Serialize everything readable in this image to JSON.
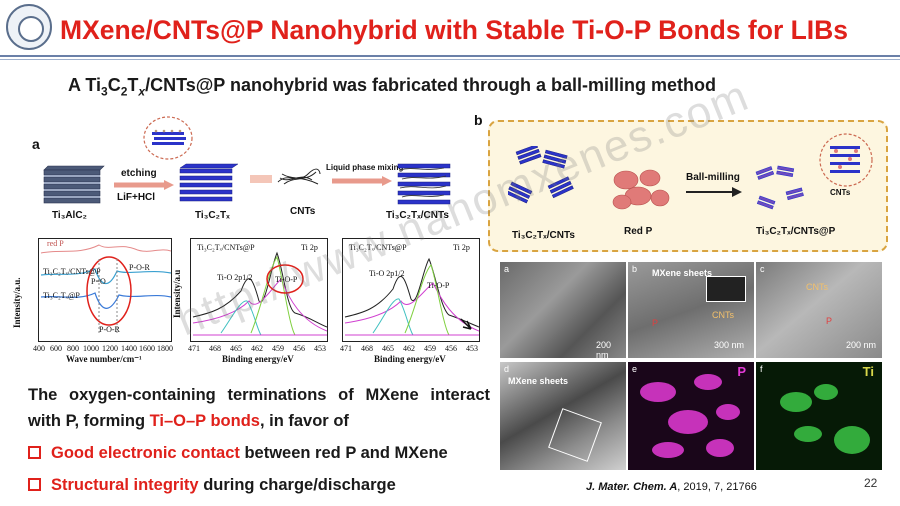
{
  "header": {
    "title": "MXene/CNTs@P Nanohybrid with Stable Ti-O-P Bonds for LIBs",
    "subtitle_pre": "A Ti",
    "subtitle_3": "3",
    "subtitle_C": "C",
    "subtitle_2": "2",
    "subtitle_T": "T",
    "subtitle_x": "x",
    "subtitle_post": "/CNTs@P nanohybrid was fabricated through a ball-milling method"
  },
  "panel_a": {
    "letter": "a",
    "labels": {
      "ti3alc2": "Ti₃AlC₂",
      "etching": "etching",
      "lif": "LiF+HCl",
      "ti3c2tx": "Ti₃C₂Tₓ",
      "cnts": "CNTs",
      "liquid_mix": "Liquid phase mixing",
      "ti3c2tx_cnts": "Ti₃C₂Tₓ/CNTs"
    },
    "ftir": {
      "ylabel": "Intensity/a.u.",
      "xlabel": "Wave number/cm⁻¹",
      "ticks": [
        "400",
        "600",
        "800",
        "1000",
        "1200",
        "1400",
        "1600",
        "1800"
      ],
      "legend": [
        "red P",
        "Ti₃C₂Tₓ/CNTs@P",
        "Ti₃C₂Tₓ@P"
      ],
      "annotations": [
        "P-O-R",
        "P=O",
        "P-O-R"
      ]
    },
    "xps1": {
      "title": "Ti₃C₂Tₓ/CNTs@P",
      "region": "Ti 2p",
      "ylabel": "Intensity/a.u",
      "xlabel": "Binding energy/eV",
      "peaks": [
        "Ti-O 2p1/2",
        "Ti-O-P"
      ],
      "ticks": [
        "471",
        "468",
        "465",
        "462",
        "459",
        "456",
        "453"
      ]
    },
    "xps2": {
      "title": "Ti₃C₂Tₓ/CNTs@P",
      "region": "Ti 2p",
      "xlabel": "Binding energy/eV",
      "peaks": [
        "Ti-O 2p1/2",
        "Ti-O-P"
      ],
      "ticks": [
        "471",
        "468",
        "465",
        "462",
        "459",
        "456",
        "453"
      ]
    }
  },
  "panel_b": {
    "letter": "b",
    "labels": {
      "ti3c2tx_cnts": "Ti₃C₂Tₓ/CNTs",
      "red_p": "Red P",
      "ball_milling": "Ball-milling",
      "product": "Ti₃C₂Tₓ/CNTs@P",
      "cnts": "CNTs"
    }
  },
  "micrographs": {
    "a": {
      "letter": "a",
      "scale": "200 nm"
    },
    "b": {
      "letter": "b",
      "caption": "MXene sheets",
      "cnts": "CNTs",
      "p": "P",
      "scale": "300 nm"
    },
    "c": {
      "letter": "c",
      "cnts": "CNTs",
      "p": "P",
      "scale": "200 nm"
    },
    "d": {
      "letter": "d",
      "caption": "MXene sheets"
    },
    "e": {
      "letter": "e",
      "element": "P"
    },
    "f": {
      "letter": "f",
      "element": "Ti"
    }
  },
  "body": {
    "text_1": "The oxygen-containing terminations of MXene interact with P, forming ",
    "text_hl": "Ti–O–P bonds",
    "text_2": ", in favor of",
    "bullet1_hl": "Good electronic contact",
    "bullet1_rest": " between red P and MXene",
    "bullet2_hl": "Structural integrity",
    "bullet2_rest": " during charge/discharge"
  },
  "reference": {
    "journal": "J. Mater. Chem. A",
    "rest": ", 2019, 7, 21766"
  },
  "page_number": "22",
  "watermark": "http://www.nanomxenes.com",
  "colors": {
    "title_red": "#e0211b",
    "mxene_blue": "#2b33c9",
    "p_magenta": "#e43ad6",
    "ti_green": "#3fd04a",
    "panel_b_border": "#d9a441"
  }
}
